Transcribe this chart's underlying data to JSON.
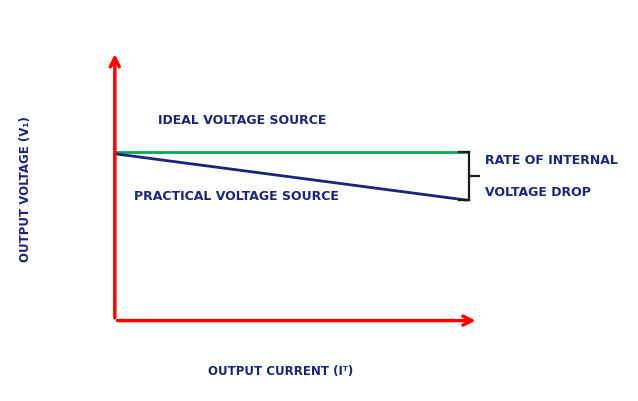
{
  "background_color": "#ffffff",
  "axis_color": "#ff0000",
  "ideal_line_color": "#00aa55",
  "practical_line_color": "#1a237e",
  "label_color": "#1a237e",
  "bracket_color": "#1a1a1a",
  "xlabel": "OUTPUT CURRENT (Iᵀ)",
  "ylabel": "OUTPUT VOLTAGE (V₁)",
  "ideal_label": "IDEAL VOLTAGE SOURCE",
  "practical_label": "PRACTICAL VOLTAGE SOURCE",
  "rate_label_line1": "RATE OF INTERNAL",
  "rate_label_line2": "VOLTAGE DROP",
  "font_size_labels": 9,
  "font_size_axis_labels": 8.5,
  "font_size_rate": 9
}
